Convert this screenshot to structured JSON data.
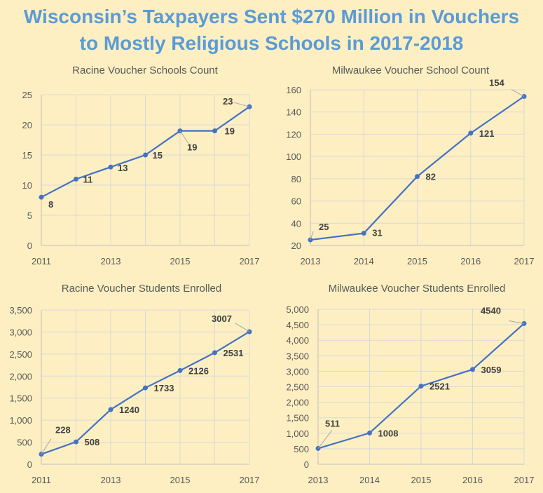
{
  "title_line1": "Wisconsin’s Taxpayers Sent $270 Million in Vouchers",
  "title_line2": "to Mostly Religious Schools in 2017-2018",
  "colors": {
    "title": "#5b9bd5",
    "line": "#4472c4",
    "background": "#fdefc2",
    "grid": "#d9d9d9"
  },
  "chart_data": [
    {
      "type": "line",
      "title": "Racine Voucher Schools Count",
      "x": [
        2011,
        2012,
        2013,
        2014,
        2015,
        2016,
        2017
      ],
      "xticks": [
        "2011",
        "",
        "2013",
        "",
        "2015",
        "",
        "2017"
      ],
      "values": [
        8,
        11,
        13,
        15,
        19,
        19,
        23
      ],
      "ylim": [
        0,
        25
      ],
      "yticks": [
        "0",
        "5",
        "10",
        "15",
        "20",
        "25"
      ],
      "grid": true,
      "data_labels": true
    },
    {
      "type": "line",
      "title": "Milwaukee Voucher School Count",
      "x": [
        2013,
        2014,
        2015,
        2016,
        2017
      ],
      "xticks": [
        "2013",
        "2014",
        "2015",
        "2016",
        "2017"
      ],
      "values": [
        25,
        31,
        82,
        121,
        154
      ],
      "ylim": [
        20,
        160
      ],
      "yticks": [
        "20",
        "40",
        "60",
        "80",
        "100",
        "120",
        "140",
        "160"
      ],
      "grid": true,
      "data_labels": true
    },
    {
      "type": "line",
      "title": "Racine Voucher Students Enrolled",
      "x": [
        2011,
        2012,
        2013,
        2014,
        2015,
        2016,
        2017
      ],
      "xticks": [
        "2011",
        "",
        "2013",
        "",
        "2015",
        "",
        "2017"
      ],
      "values": [
        228,
        508,
        1240,
        1733,
        2126,
        2531,
        3007
      ],
      "ylim": [
        0,
        3500
      ],
      "yticks": [
        "0",
        "500",
        "1,000",
        "1,500",
        "2,000",
        "2,500",
        "3,000",
        "3,500"
      ],
      "grid": true,
      "data_labels": true
    },
    {
      "type": "line",
      "title": "Milwaukee Voucher Students Enrolled",
      "x": [
        2013,
        2014,
        2015,
        2016,
        2017
      ],
      "xticks": [
        "2013",
        "2014",
        "2015",
        "2016",
        "2017"
      ],
      "values": [
        511,
        1008,
        2521,
        3059,
        4540
      ],
      "ylim": [
        0,
        5000
      ],
      "yticks": [
        "0",
        "500",
        "1,000",
        "1,500",
        "2,000",
        "2,500",
        "3,000",
        "3,500",
        "4,000",
        "4,500",
        "5,000"
      ],
      "grid": true,
      "data_labels": true
    }
  ]
}
